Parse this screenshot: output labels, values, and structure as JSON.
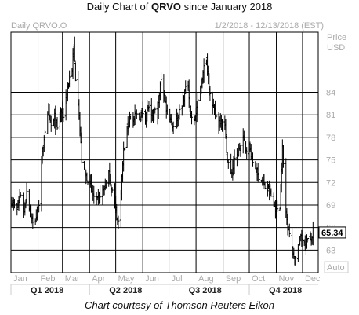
{
  "chart_data": {
    "type": "ohlc",
    "title": {
      "prefix": "Daily Chart of ",
      "symbol": "QRVO",
      "suffix": " since January 2018"
    },
    "instrument_label": "Daily QRVO.O",
    "date_range": "1/2/2018 - 12/13/2018 (EST)",
    "ylabel": "Price",
    "currency": "USD",
    "ylim": [
      60,
      92
    ],
    "y_ticks": [
      63,
      66,
      69,
      72,
      75,
      78,
      81,
      84
    ],
    "x_months": [
      "Jan",
      "Feb",
      "Mar",
      "Apr",
      "May",
      "Jun",
      "Jul",
      "Aug",
      "Sep",
      "Oct",
      "Nov",
      "Dec"
    ],
    "quarters": [
      "Q1 2018",
      "Q2 2018",
      "Q3 2018",
      "Q4 2018"
    ],
    "last_price": "65.34",
    "last_value": 65.34,
    "scale_mode": "Auto",
    "grid": true,
    "path": [
      [
        "2018-01-02",
        69.5
      ],
      [
        "2018-01-08",
        68.2
      ],
      [
        "2018-01-12",
        70.5
      ],
      [
        "2018-01-16",
        68.0
      ],
      [
        "2018-01-19",
        71.0
      ],
      [
        "2018-01-24",
        67.5
      ],
      [
        "2018-01-27",
        66.0
      ],
      [
        "2018-01-31",
        68.0
      ],
      [
        "2018-02-03",
        70.0
      ],
      [
        "2018-02-06",
        76.0
      ],
      [
        "2018-02-09",
        79.0
      ],
      [
        "2018-02-13",
        81.0
      ],
      [
        "2018-02-16",
        79.5
      ],
      [
        "2018-02-20",
        80.5
      ],
      [
        "2018-02-23",
        79.0
      ],
      [
        "2018-02-27",
        81.5
      ],
      [
        "2018-03-02",
        81.0
      ],
      [
        "2018-03-06",
        84.0
      ],
      [
        "2018-03-09",
        86.0
      ],
      [
        "2018-03-12",
        87.0
      ],
      [
        "2018-03-14",
        90.0
      ],
      [
        "2018-03-16",
        86.0
      ],
      [
        "2018-03-19",
        83.0
      ],
      [
        "2018-03-21",
        79.0
      ],
      [
        "2018-03-23",
        75.0
      ],
      [
        "2018-03-27",
        73.0
      ],
      [
        "2018-03-30",
        72.5
      ],
      [
        "2018-04-03",
        71.0
      ],
      [
        "2018-04-06",
        70.0
      ],
      [
        "2018-04-10",
        69.5
      ],
      [
        "2018-04-13",
        70.5
      ],
      [
        "2018-04-17",
        71.0
      ],
      [
        "2018-04-20",
        72.0
      ],
      [
        "2018-04-23",
        73.0
      ],
      [
        "2018-04-26",
        71.5
      ],
      [
        "2018-04-30",
        69.0
      ],
      [
        "2018-05-03",
        67.0
      ],
      [
        "2018-05-05",
        66.5
      ],
      [
        "2018-05-07",
        71.0
      ],
      [
        "2018-05-10",
        76.0
      ],
      [
        "2018-05-14",
        79.0
      ],
      [
        "2018-05-17",
        81.0
      ],
      [
        "2018-05-21",
        80.0
      ],
      [
        "2018-05-24",
        81.0
      ],
      [
        "2018-05-28",
        80.5
      ],
      [
        "2018-05-31",
        81.5
      ],
      [
        "2018-06-04",
        81.0
      ],
      [
        "2018-06-07",
        82.0
      ],
      [
        "2018-06-11",
        80.5
      ],
      [
        "2018-06-14",
        81.5
      ],
      [
        "2018-06-18",
        81.0
      ],
      [
        "2018-06-22",
        86.0
      ],
      [
        "2018-06-25",
        84.0
      ],
      [
        "2018-06-28",
        82.0
      ],
      [
        "2018-07-02",
        81.0
      ],
      [
        "2018-07-05",
        79.5
      ],
      [
        "2018-07-09",
        80.5
      ],
      [
        "2018-07-12",
        81.0
      ],
      [
        "2018-07-16",
        82.0
      ],
      [
        "2018-07-19",
        84.0
      ],
      [
        "2018-07-23",
        85.0
      ],
      [
        "2018-07-26",
        81.0
      ],
      [
        "2018-07-30",
        80.0
      ],
      [
        "2018-08-02",
        82.0
      ],
      [
        "2018-08-06",
        84.0
      ],
      [
        "2018-08-09",
        87.0
      ],
      [
        "2018-08-13",
        88.0
      ],
      [
        "2018-08-16",
        85.0
      ],
      [
        "2018-08-20",
        82.0
      ],
      [
        "2018-08-23",
        81.0
      ],
      [
        "2018-08-27",
        80.0
      ],
      [
        "2018-08-30",
        80.5
      ],
      [
        "2018-09-03",
        79.5
      ],
      [
        "2018-09-06",
        75.0
      ],
      [
        "2018-09-10",
        73.0
      ],
      [
        "2018-09-13",
        74.5
      ],
      [
        "2018-09-17",
        75.5
      ],
      [
        "2018-09-20",
        76.5
      ],
      [
        "2018-09-24",
        78.0
      ],
      [
        "2018-09-27",
        76.5
      ],
      [
        "2018-10-01",
        77.0
      ],
      [
        "2018-10-04",
        75.0
      ],
      [
        "2018-10-08",
        74.0
      ],
      [
        "2018-10-11",
        73.0
      ],
      [
        "2018-10-15",
        72.5
      ],
      [
        "2018-10-18",
        71.5
      ],
      [
        "2018-10-22",
        71.0
      ],
      [
        "2018-10-25",
        70.5
      ],
      [
        "2018-10-29",
        69.0
      ],
      [
        "2018-11-01",
        68.5
      ],
      [
        "2018-11-05",
        69.0
      ],
      [
        "2018-11-08",
        76.5
      ],
      [
        "2018-11-12",
        68.0
      ],
      [
        "2018-11-15",
        66.0
      ],
      [
        "2018-11-19",
        63.0
      ],
      [
        "2018-11-22",
        62.0
      ],
      [
        "2018-11-26",
        63.0
      ],
      [
        "2018-11-29",
        65.0
      ],
      [
        "2018-12-03",
        64.0
      ],
      [
        "2018-12-06",
        64.5
      ],
      [
        "2018-12-10",
        64.0
      ],
      [
        "2018-12-13",
        65.34
      ]
    ]
  },
  "caption": "Chart courtesy of Thomson Reuters Eikon",
  "colors": {
    "bars": "#000000",
    "grid": "#000000",
    "axis_text": "#aaaaaa",
    "quarter_text": "#222222",
    "price_box_bg": "#ffffff"
  }
}
